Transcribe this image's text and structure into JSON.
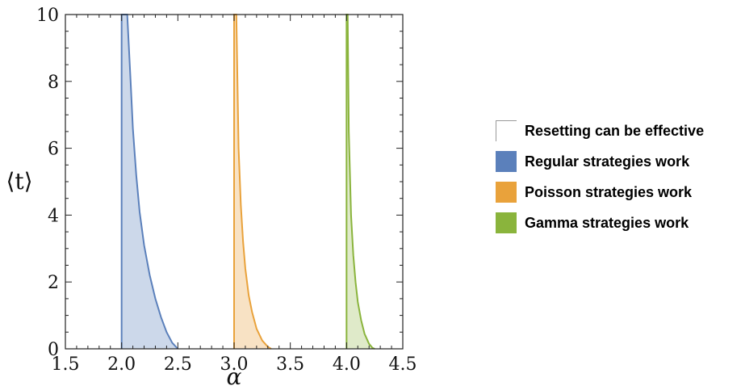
{
  "chart_data": {
    "type": "area",
    "xlabel": "α",
    "ylabel": "⟨t⟩",
    "xlim": [
      1.5,
      4.5
    ],
    "ylim": [
      0,
      10
    ],
    "xticks": [
      "1.5",
      "2.0",
      "2.5",
      "3.0",
      "3.5",
      "4.0",
      "4.5"
    ],
    "yticks": [
      "0",
      "2",
      "4",
      "6",
      "8",
      "10"
    ],
    "series": [
      {
        "name": "Regular strategies work",
        "color": "#5b80bb",
        "fill": "#c7d4e8",
        "x": [
          2.0,
          2.05,
          2.08,
          2.1,
          2.13,
          2.16,
          2.2,
          2.25,
          2.3,
          2.35,
          2.4,
          2.45,
          2.5
        ],
        "y": [
          10,
          10,
          8.0,
          6.6,
          5.2,
          4.1,
          3.1,
          2.2,
          1.5,
          0.95,
          0.5,
          0.18,
          0
        ]
      },
      {
        "name": "Poisson strategies work",
        "color": "#e9a23b",
        "fill": "#f7dfbe",
        "x": [
          3.0,
          3.02,
          3.04,
          3.06,
          3.08,
          3.1,
          3.13,
          3.16,
          3.2,
          3.25,
          3.3,
          3.33
        ],
        "y": [
          10,
          10,
          6.0,
          4.3,
          3.2,
          2.4,
          1.6,
          1.1,
          0.6,
          0.25,
          0.06,
          0
        ]
      },
      {
        "name": "Gamma strategies work",
        "color": "#8ab43c",
        "fill": "#dbe8c3",
        "x": [
          4.0,
          4.01,
          4.02,
          4.04,
          4.06,
          4.08,
          4.1,
          4.13,
          4.16,
          4.2,
          4.23,
          4.25
        ],
        "y": [
          10,
          10,
          6.5,
          4.0,
          2.8,
          2.0,
          1.4,
          0.85,
          0.45,
          0.15,
          0.03,
          0
        ]
      }
    ],
    "legend": {
      "placement": "right",
      "items": [
        {
          "label": "Resetting can be effective",
          "swatch": "outline"
        },
        {
          "label": "Regular strategies work",
          "color": "#5b80bb"
        },
        {
          "label": "Poisson strategies work",
          "color": "#e9a23b"
        },
        {
          "label": "Gamma strategies work",
          "color": "#8ab43c"
        }
      ]
    },
    "grid": false
  }
}
